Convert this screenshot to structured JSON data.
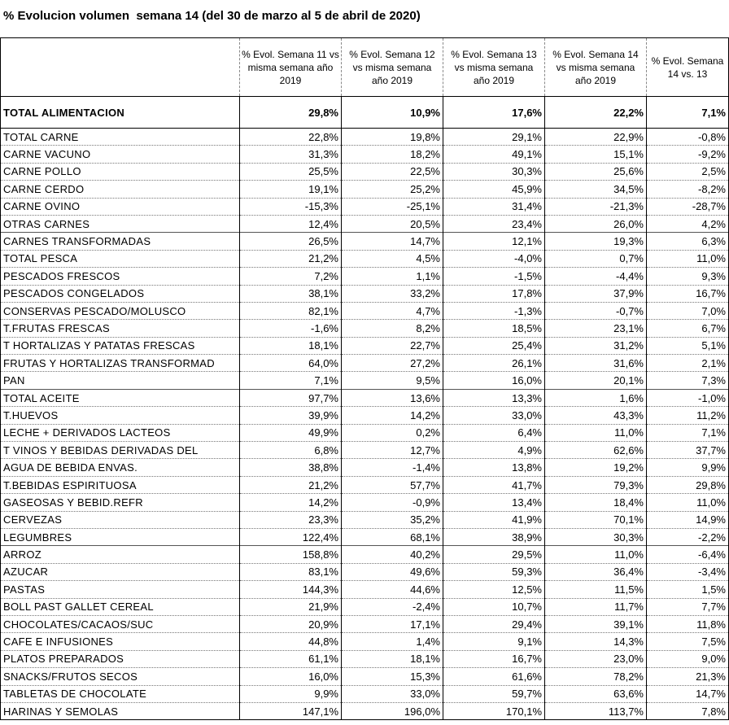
{
  "title": "% Evolucion volumen  semana 14 (del 30 de marzo al 5 de abril de 2020)",
  "columns": [
    "% Evol. Semana 11 vs misma semana año 2019",
    "% Evol. Semana 12 vs misma semana año 2019",
    "% Evol. Semana 13 vs misma semana año 2019",
    "% Evol. Semana 14 vs misma semana año 2019",
    "% Evol. Semana 14 vs. 13"
  ],
  "total": {
    "label": "TOTAL ALIMENTACION",
    "values": [
      "29,8%",
      "10,9%",
      "17,6%",
      "22,2%",
      "7,1%"
    ]
  },
  "rows": [
    {
      "label": "TOTAL CARNE",
      "values": [
        "22,8%",
        "19,8%",
        "29,1%",
        "22,9%",
        "-0,8%"
      ]
    },
    {
      "label": "CARNE VACUNO",
      "values": [
        "31,3%",
        "18,2%",
        "49,1%",
        "15,1%",
        "-9,2%"
      ]
    },
    {
      "label": "CARNE POLLO",
      "values": [
        "25,5%",
        "22,5%",
        "30,3%",
        "25,6%",
        "2,5%"
      ]
    },
    {
      "label": "CARNE CERDO",
      "values": [
        "19,1%",
        "25,2%",
        "45,9%",
        "34,5%",
        "-8,2%"
      ]
    },
    {
      "label": "CARNE OVINO",
      "values": [
        "-15,3%",
        "-25,1%",
        "31,4%",
        "-21,3%",
        "-28,7%"
      ]
    },
    {
      "label": "OTRAS CARNES",
      "values": [
        "12,4%",
        "20,5%",
        "23,4%",
        "26,0%",
        "4,2%"
      ]
    },
    {
      "label": "CARNES TRANSFORMADAS",
      "values": [
        "26,5%",
        "14,7%",
        "12,1%",
        "19,3%",
        "6,3%"
      ]
    },
    {
      "label": "TOTAL PESCA",
      "values": [
        "21,2%",
        "4,5%",
        "-4,0%",
        "0,7%",
        "11,0%"
      ]
    },
    {
      "label": "PESCADOS FRESCOS",
      "values": [
        "7,2%",
        "1,1%",
        "-1,5%",
        "-4,4%",
        "9,3%"
      ]
    },
    {
      "label": "PESCADOS CONGELADOS",
      "values": [
        "38,1%",
        "33,2%",
        "17,8%",
        "37,9%",
        "16,7%"
      ]
    },
    {
      "label": "CONSERVAS PESCADO/MOLUSCO",
      "values": [
        "82,1%",
        "4,7%",
        "-1,3%",
        "-0,7%",
        "7,0%"
      ]
    },
    {
      "label": "T.FRUTAS FRESCAS",
      "values": [
        "-1,6%",
        "8,2%",
        "18,5%",
        "23,1%",
        "6,7%"
      ]
    },
    {
      "label": "T HORTALIZAS Y PATATAS FRESCAS",
      "values": [
        "18,1%",
        "22,7%",
        "25,4%",
        "31,2%",
        "5,1%"
      ]
    },
    {
      "label": "FRUTAS Y HORTALIZAS TRANSFORMAD",
      "values": [
        "64,0%",
        "27,2%",
        "26,1%",
        "31,6%",
        "2,1%"
      ]
    },
    {
      "label": "PAN",
      "values": [
        "7,1%",
        "9,5%",
        "16,0%",
        "20,1%",
        "7,3%"
      ]
    },
    {
      "label": "TOTAL ACEITE",
      "values": [
        "97,7%",
        "13,6%",
        "13,3%",
        "1,6%",
        "-1,0%"
      ]
    },
    {
      "label": "T.HUEVOS",
      "values": [
        "39,9%",
        "14,2%",
        "33,0%",
        "43,3%",
        "11,2%"
      ]
    },
    {
      "label": "LECHE + DERIVADOS LACTEOS",
      "values": [
        "49,9%",
        "0,2%",
        "6,4%",
        "11,0%",
        "7,1%"
      ]
    },
    {
      "label": "T VINOS Y BEBIDAS DERIVADAS DEL",
      "values": [
        "6,8%",
        "12,7%",
        "4,9%",
        "62,6%",
        "37,7%"
      ]
    },
    {
      "label": "AGUA DE BEBIDA ENVAS.",
      "values": [
        "38,8%",
        "-1,4%",
        "13,8%",
        "19,2%",
        "9,9%"
      ]
    },
    {
      "label": "T.BEBIDAS ESPIRITUOSA",
      "values": [
        "21,2%",
        "57,7%",
        "41,7%",
        "79,3%",
        "29,8%"
      ]
    },
    {
      "label": "GASEOSAS Y BEBID.REFR",
      "values": [
        "14,2%",
        "-0,9%",
        "13,4%",
        "18,4%",
        "11,0%"
      ]
    },
    {
      "label": "CERVEZAS",
      "values": [
        "23,3%",
        "35,2%",
        "41,9%",
        "70,1%",
        "14,9%"
      ]
    },
    {
      "label": "LEGUMBRES",
      "values": [
        "122,4%",
        "68,1%",
        "38,9%",
        "30,3%",
        "-2,2%"
      ]
    },
    {
      "label": "ARROZ",
      "values": [
        "158,8%",
        "40,2%",
        "29,5%",
        "11,0%",
        "-6,4%"
      ]
    },
    {
      "label": "AZUCAR",
      "values": [
        "83,1%",
        "49,6%",
        "59,3%",
        "36,4%",
        "-3,4%"
      ]
    },
    {
      "label": "PASTAS",
      "values": [
        "144,3%",
        "44,6%",
        "12,5%",
        "11,5%",
        "1,5%"
      ]
    },
    {
      "label": "BOLL PAST GALLET CEREAL",
      "values": [
        "21,9%",
        "-2,4%",
        "10,7%",
        "11,7%",
        "7,7%"
      ]
    },
    {
      "label": "CHOCOLATES/CACAOS/SUC",
      "values": [
        "20,9%",
        "17,1%",
        "29,4%",
        "39,1%",
        "11,8%"
      ]
    },
    {
      "label": "CAFE E INFUSIONES",
      "values": [
        "44,8%",
        "1,4%",
        "9,1%",
        "14,3%",
        "7,5%"
      ]
    },
    {
      "label": "PLATOS PREPARADOS",
      "values": [
        "61,1%",
        "18,1%",
        "16,7%",
        "23,0%",
        "9,0%"
      ]
    },
    {
      "label": "SNACKS/FRUTOS SECOS",
      "values": [
        "16,0%",
        "15,3%",
        "61,6%",
        "78,2%",
        "21,3%"
      ]
    },
    {
      "label": "TABLETAS DE CHOCOLATE",
      "values": [
        "9,9%",
        "33,0%",
        "59,7%",
        "63,6%",
        "14,7%"
      ]
    },
    {
      "label": "HARINAS Y SEMOLAS",
      "values": [
        "147,1%",
        "196,0%",
        "170,1%",
        "113,7%",
        "7,8%"
      ]
    }
  ]
}
